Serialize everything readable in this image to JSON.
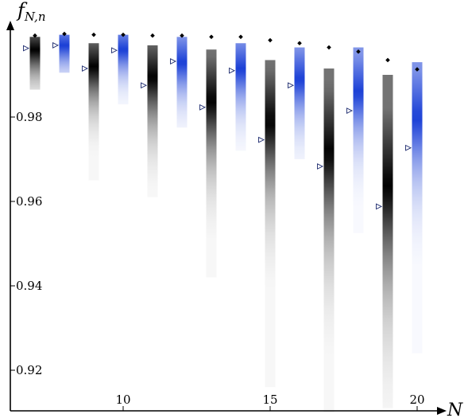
{
  "chart_data": {
    "type": "heatmap",
    "title": "",
    "xlabel": "N",
    "ylabel": "f",
    "ylabel_subscript": "N,n",
    "xlim": [
      6.5,
      21
    ],
    "ylim": [
      0.91,
      1.0
    ],
    "x_ticks": [
      10,
      15,
      20
    ],
    "x_tick_labels": [
      "10",
      "15",
      "20"
    ],
    "y_ticks": [
      0.92,
      0.94,
      0.96,
      0.98
    ],
    "y_tick_labels": [
      "0.92",
      "0.94",
      "0.96",
      "0.98"
    ],
    "grid": false,
    "legend": "none",
    "colors": {
      "even_N": "#1a3fd6",
      "odd_N": "#000000",
      "marker_max": "#000000",
      "marker_mean": "#1c2a6e"
    },
    "markers": {
      "max": "diamond",
      "mean": "open-triangle-right"
    },
    "series": [
      {
        "N": 7,
        "color": "odd_N",
        "top": 0.999,
        "bottom": 0.9865,
        "peak": 0.996,
        "dark_spread": 0.0035,
        "max": 0.9993,
        "mean": 0.9963
      },
      {
        "N": 8,
        "color": "even_N",
        "top": 0.9995,
        "bottom": 0.9905,
        "peak": 0.997,
        "dark_spread": 0.003,
        "max": 0.9997,
        "mean": 0.997
      },
      {
        "N": 9,
        "color": "odd_N",
        "top": 0.9975,
        "bottom": 0.965,
        "peak": 0.992,
        "dark_spread": 0.005,
        "max": 0.9995,
        "mean": 0.9915
      },
      {
        "N": 10,
        "color": "even_N",
        "top": 0.9995,
        "bottom": 0.983,
        "peak": 0.996,
        "dark_spread": 0.0035,
        "max": 0.9995,
        "mean": 0.9958
      },
      {
        "N": 11,
        "color": "odd_N",
        "top": 0.997,
        "bottom": 0.961,
        "peak": 0.9895,
        "dark_spread": 0.0065,
        "max": 0.9993,
        "mean": 0.9875
      },
      {
        "N": 12,
        "color": "even_N",
        "top": 0.999,
        "bottom": 0.9775,
        "peak": 0.993,
        "dark_spread": 0.0045,
        "max": 0.9993,
        "mean": 0.9932
      },
      {
        "N": 13,
        "color": "odd_N",
        "top": 0.996,
        "bottom": 0.942,
        "peak": 0.984,
        "dark_spread": 0.008,
        "max": 0.999,
        "mean": 0.9823
      },
      {
        "N": 14,
        "color": "even_N",
        "top": 0.9975,
        "bottom": 0.972,
        "peak": 0.9915,
        "dark_spread": 0.005,
        "max": 0.999,
        "mean": 0.991
      },
      {
        "N": 15,
        "color": "odd_N",
        "top": 0.9935,
        "bottom": 0.916,
        "peak": 0.979,
        "dark_spread": 0.0095,
        "max": 0.9982,
        "mean": 0.9746
      },
      {
        "N": 16,
        "color": "even_N",
        "top": 0.9965,
        "bottom": 0.97,
        "peak": 0.989,
        "dark_spread": 0.0055,
        "max": 0.9975,
        "mean": 0.9875
      },
      {
        "N": 17,
        "color": "odd_N",
        "top": 0.9915,
        "bottom": 0.91,
        "peak": 0.972,
        "dark_spread": 0.0115,
        "max": 0.9965,
        "mean": 0.9683
      },
      {
        "N": 18,
        "color": "even_N",
        "top": 0.9965,
        "bottom": 0.9525,
        "peak": 0.986,
        "dark_spread": 0.0065,
        "max": 0.9955,
        "mean": 0.9815
      },
      {
        "N": 19,
        "color": "odd_N",
        "top": 0.99,
        "bottom": 0.911,
        "peak": 0.964,
        "dark_spread": 0.0135,
        "max": 0.9935,
        "mean": 0.9588
      },
      {
        "N": 20,
        "color": "even_N",
        "top": 0.993,
        "bottom": 0.924,
        "peak": 0.98,
        "dark_spread": 0.0085,
        "max": 0.9913,
        "mean": 0.9727
      }
    ]
  }
}
